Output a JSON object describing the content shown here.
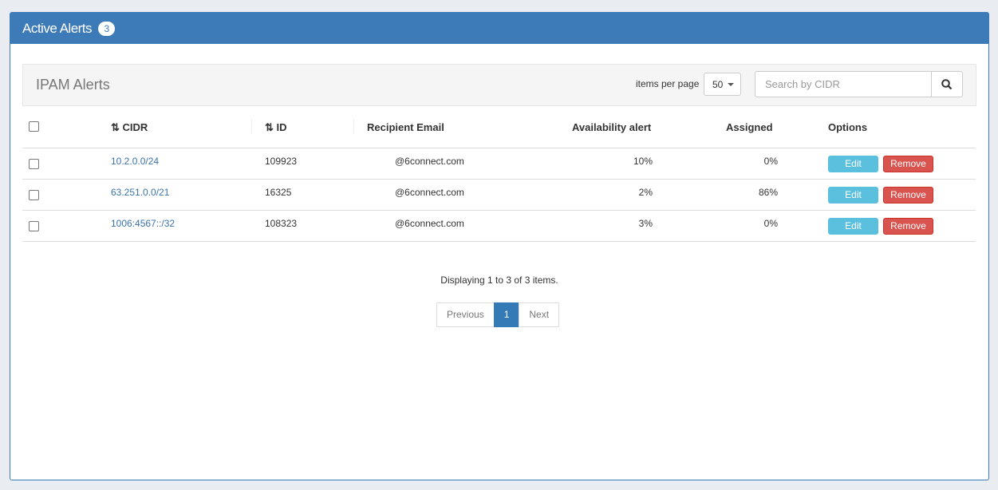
{
  "panel": {
    "title": "Active Alerts",
    "count": "3"
  },
  "toolbar": {
    "title": "IPAM Alerts",
    "items_per_page_label": "items per page",
    "items_per_page": "50",
    "search_placeholder": "Search by CIDR"
  },
  "table": {
    "headers": [
      "CIDR",
      "ID",
      "Recipient Email",
      "Availability alert",
      "Assigned",
      "Options"
    ],
    "rows": [
      {
        "cidr": "10.2.0.0/24",
        "id": "109923",
        "email": "@6connect.com",
        "availability": "10%",
        "assigned": "0%"
      },
      {
        "cidr": "63.251.0.0/21",
        "id": "16325",
        "email": "@6connect.com",
        "availability": "2%",
        "assigned": "86%"
      },
      {
        "cidr": "1006:4567::/32",
        "id": "108323",
        "email": "@6connect.com",
        "availability": "3%",
        "assigned": "0%"
      }
    ],
    "edit_label": "Edit",
    "remove_label": "Remove"
  },
  "footer": {
    "info": "Displaying 1 to 3 of 3 items.",
    "previous": "Previous",
    "page": "1",
    "next": "Next"
  },
  "colors": {
    "header": "#3d7ab8",
    "edit": "#5bc0de",
    "remove": "#d9534f"
  }
}
